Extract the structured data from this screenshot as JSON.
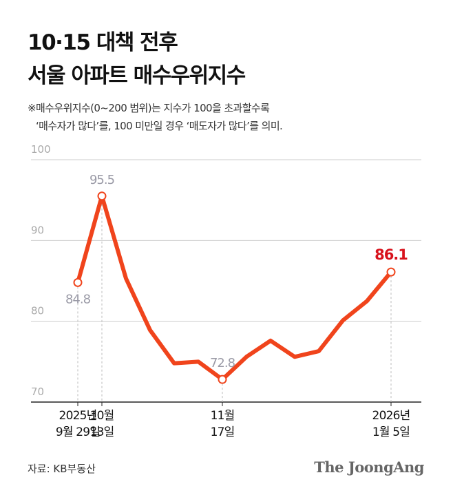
{
  "chart_data": {
    "type": "line",
    "title": [
      "10·15 대책 전후",
      "서울 아파트 매수우위지수"
    ],
    "notes": [
      "※매수우위지수(0~200 범위)는 지수가 100을 초과할수록",
      "‘매수자가 많다’를, 100 미만일 경우 ‘매도자가 많다’를 의미."
    ],
    "categories": [
      "2025년\n9월 29일",
      "10월\n13일",
      null,
      null,
      null,
      null,
      "11월\n17일",
      null,
      null,
      null,
      null,
      null,
      null,
      "2026년\n1월 5일"
    ],
    "series": [
      {
        "color": "#f0441c",
        "values": [
          84.8,
          95.5,
          85.3,
          78.9,
          74.8,
          75.0,
          72.8,
          75.6,
          77.6,
          75.6,
          76.3,
          80.1,
          82.5,
          86.1
        ]
      }
    ],
    "ylim": [
      70,
      100
    ],
    "yticks": [
      70,
      80,
      90,
      100
    ],
    "grid": true,
    "source": "자료: KB부동산",
    "logo": "The JoongAng"
  }
}
